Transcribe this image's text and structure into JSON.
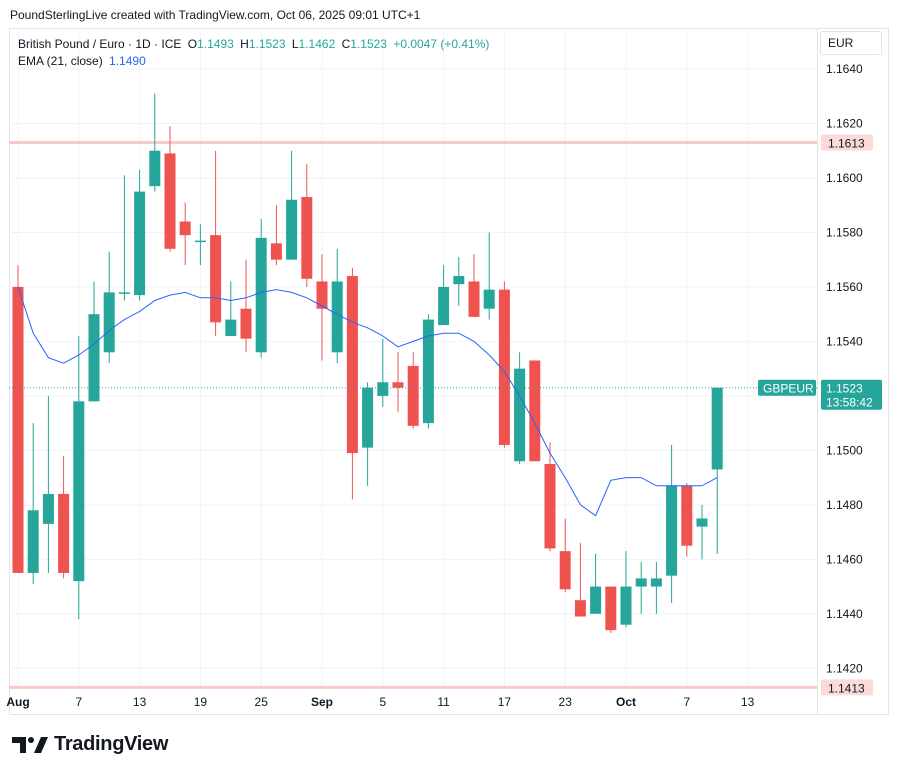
{
  "header": {
    "credit": "PoundSterlingLive created with TradingView.com, Oct 06, 2025 09:01 UTC+1"
  },
  "legend": {
    "symbol": "British Pound / Euro · 1D · ICE",
    "o_label": "O",
    "o_value": "1.1493",
    "h_label": "H",
    "h_value": "1.1523",
    "l_label": "L",
    "l_value": "1.1462",
    "c_label": "C",
    "c_value": "1.1523",
    "change": "+0.0047 (+0.41%)",
    "ema_label": "EMA (21, close)",
    "ema_value": "1.1490"
  },
  "axis": {
    "currency": "EUR",
    "price_ticks": [
      "1.1640",
      "1.1620",
      "1.1600",
      "1.1580",
      "1.1560",
      "1.1540",
      "1.1500",
      "1.1480",
      "1.1460",
      "1.1440",
      "1.1420"
    ],
    "date_ticks": [
      "Aug",
      "7",
      "13",
      "19",
      "25",
      "Sep",
      "5",
      "11",
      "17",
      "23",
      "Oct",
      "7",
      "13"
    ]
  },
  "lines": {
    "upper_level": "1.1613",
    "lower_level": "1.1413",
    "last_symbol": "GBPEUR",
    "last_price": "1.1523",
    "countdown": "13:58:42"
  },
  "colors": {
    "up": "#26a69a",
    "down": "#ef5350",
    "ema": "#2962ff",
    "level_line": "#f7c9c9",
    "grid": "#f0f3fa"
  },
  "brand": {
    "name": "TradingView"
  },
  "chart_data": {
    "type": "candlestick",
    "series_name": "GBPEUR",
    "ylim": [
      1.1412,
      1.166
    ],
    "price_ticks": [
      1.164,
      1.162,
      1.16,
      1.158,
      1.156,
      1.154,
      1.152,
      1.15,
      1.148,
      1.146,
      1.144,
      1.142
    ],
    "levels": [
      1.1613,
      1.1413
    ],
    "candles": [
      {
        "o": 1.156,
        "h": 1.1568,
        "l": 1.1455,
        "c": 1.1455
      },
      {
        "o": 1.1455,
        "h": 1.151,
        "l": 1.1451,
        "c": 1.1478
      },
      {
        "o": 1.1473,
        "h": 1.152,
        "l": 1.1455,
        "c": 1.1484
      },
      {
        "o": 1.1484,
        "h": 1.1498,
        "l": 1.1453,
        "c": 1.1455
      },
      {
        "o": 1.1452,
        "h": 1.1542,
        "l": 1.1438,
        "c": 1.1518
      },
      {
        "o": 1.1518,
        "h": 1.1562,
        "l": 1.1518,
        "c": 1.155
      },
      {
        "o": 1.1536,
        "h": 1.1573,
        "l": 1.1532,
        "c": 1.1558
      },
      {
        "o": 1.1558,
        "h": 1.1601,
        "l": 1.1555,
        "c": 1.1558
      },
      {
        "o": 1.1557,
        "h": 1.1603,
        "l": 1.1555,
        "c": 1.1595
      },
      {
        "o": 1.1597,
        "h": 1.1631,
        "l": 1.1595,
        "c": 1.161
      },
      {
        "o": 1.1609,
        "h": 1.1619,
        "l": 1.1573,
        "c": 1.1574
      },
      {
        "o": 1.1584,
        "h": 1.1591,
        "l": 1.1568,
        "c": 1.1579
      },
      {
        "o": 1.1577,
        "h": 1.1583,
        "l": 1.1568,
        "c": 1.1577
      },
      {
        "o": 1.1579,
        "h": 1.161,
        "l": 1.1542,
        "c": 1.1547
      },
      {
        "o": 1.1542,
        "h": 1.1562,
        "l": 1.1542,
        "c": 1.1548
      },
      {
        "o": 1.1552,
        "h": 1.157,
        "l": 1.1536,
        "c": 1.1541
      },
      {
        "o": 1.1536,
        "h": 1.1585,
        "l": 1.1534,
        "c": 1.1578
      },
      {
        "o": 1.1576,
        "h": 1.159,
        "l": 1.1568,
        "c": 1.157
      },
      {
        "o": 1.157,
        "h": 1.161,
        "l": 1.157,
        "c": 1.1592
      },
      {
        "o": 1.1593,
        "h": 1.1605,
        "l": 1.156,
        "c": 1.1563
      },
      {
        "o": 1.1562,
        "h": 1.1572,
        "l": 1.1533,
        "c": 1.1552
      },
      {
        "o": 1.1536,
        "h": 1.1574,
        "l": 1.1532,
        "c": 1.1562
      },
      {
        "o": 1.1564,
        "h": 1.1567,
        "l": 1.1482,
        "c": 1.1499
      },
      {
        "o": 1.1501,
        "h": 1.1525,
        "l": 1.1487,
        "c": 1.1523
      },
      {
        "o": 1.152,
        "h": 1.1541,
        "l": 1.1516,
        "c": 1.1525
      },
      {
        "o": 1.1525,
        "h": 1.1536,
        "l": 1.1514,
        "c": 1.1523
      },
      {
        "o": 1.1531,
        "h": 1.1536,
        "l": 1.1508,
        "c": 1.1509
      },
      {
        "o": 1.151,
        "h": 1.155,
        "l": 1.1508,
        "c": 1.1548
      },
      {
        "o": 1.1546,
        "h": 1.1568,
        "l": 1.1546,
        "c": 1.156
      },
      {
        "o": 1.1561,
        "h": 1.1571,
        "l": 1.1553,
        "c": 1.1564
      },
      {
        "o": 1.1562,
        "h": 1.1572,
        "l": 1.1549,
        "c": 1.1549
      },
      {
        "o": 1.1552,
        "h": 1.158,
        "l": 1.1548,
        "c": 1.1559
      },
      {
        "o": 1.1559,
        "h": 1.1562,
        "l": 1.1501,
        "c": 1.1502
      },
      {
        "o": 1.1496,
        "h": 1.1536,
        "l": 1.1495,
        "c": 1.153
      },
      {
        "o": 1.1533,
        "h": 1.1533,
        "l": 1.1496,
        "c": 1.1496
      },
      {
        "o": 1.1495,
        "h": 1.1503,
        "l": 1.1463,
        "c": 1.1464
      },
      {
        "o": 1.1463,
        "h": 1.1475,
        "l": 1.1448,
        "c": 1.1449
      },
      {
        "o": 1.1445,
        "h": 1.1466,
        "l": 1.1439,
        "c": 1.1439
      },
      {
        "o": 1.144,
        "h": 1.1462,
        "l": 1.144,
        "c": 1.145
      },
      {
        "o": 1.145,
        "h": 1.145,
        "l": 1.1433,
        "c": 1.1434
      },
      {
        "o": 1.1436,
        "h": 1.1463,
        "l": 1.1435,
        "c": 1.145
      },
      {
        "o": 1.145,
        "h": 1.1459,
        "l": 1.144,
        "c": 1.1453
      },
      {
        "o": 1.145,
        "h": 1.1459,
        "l": 1.144,
        "c": 1.1453
      },
      {
        "o": 1.1454,
        "h": 1.1502,
        "l": 1.1444,
        "c": 1.1487
      },
      {
        "o": 1.1487,
        "h": 1.1488,
        "l": 1.1461,
        "c": 1.1465
      },
      {
        "o": 1.1472,
        "h": 1.148,
        "l": 1.146,
        "c": 1.1475
      },
      {
        "o": 1.1493,
        "h": 1.1523,
        "l": 1.1462,
        "c": 1.1523
      }
    ],
    "ema": [
      1.156,
      1.1543,
      1.1534,
      1.1532,
      1.1535,
      1.1539,
      1.1544,
      1.1548,
      1.1551,
      1.1555,
      1.1557,
      1.1558,
      1.1556,
      1.1556,
      1.1555,
      1.1556,
      1.1558,
      1.1559,
      1.1558,
      1.1556,
      1.1553,
      1.155,
      1.1547,
      1.1545,
      1.1542,
      1.1538,
      1.154,
      1.1542,
      1.1543,
      1.1543,
      1.154,
      1.1535,
      1.1529,
      1.152,
      1.151,
      1.1499,
      1.149,
      1.148,
      1.1476,
      1.1489,
      1.149,
      1.149,
      1.1487,
      1.1487,
      1.1487,
      1.1487,
      1.149
    ],
    "x_ticks": [
      "Aug",
      "7",
      "13",
      "19",
      "25",
      "Sep",
      "5",
      "11",
      "17",
      "23",
      "Oct",
      "7",
      "13"
    ]
  }
}
